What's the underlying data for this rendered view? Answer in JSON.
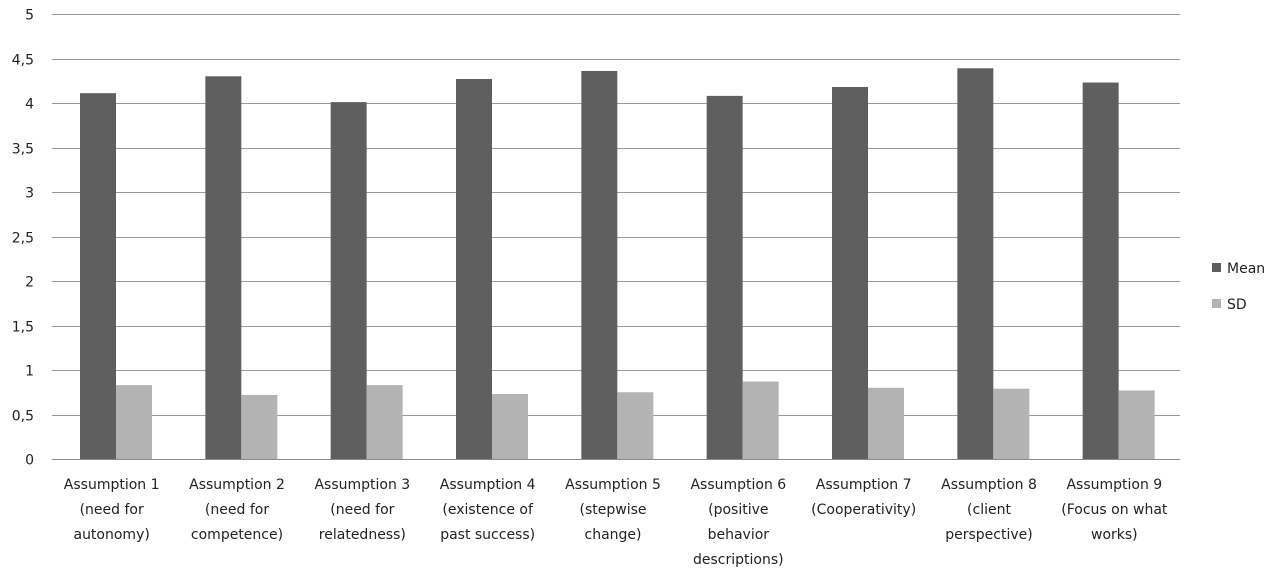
{
  "chart_data": {
    "type": "bar",
    "title": "",
    "xlabel": "",
    "ylabel": "",
    "ylim": [
      0,
      5
    ],
    "y_tick_step": 0.5,
    "y_tick_labels": [
      "0",
      "0,5",
      "1",
      "1,5",
      "2",
      "2,5",
      "3",
      "3,5",
      "4",
      "4,5",
      "5"
    ],
    "grid": true,
    "legend_position": "right",
    "categories": [
      [
        "Assumption 1",
        "(need for",
        "autonomy)"
      ],
      [
        "Assumption 2",
        "(need for",
        "competence)"
      ],
      [
        "Assumption 3",
        "(need for",
        "relatedness)"
      ],
      [
        "Assumption 4",
        "(existence of",
        "past success)"
      ],
      [
        "Assumption 5",
        "(stepwise",
        "change)"
      ],
      [
        "Assumption 6",
        "(positive",
        "behavior",
        "descriptions)"
      ],
      [
        "Assumption 7",
        "(Cooperativity)"
      ],
      [
        "Assumption 8",
        "(client",
        "perspective)"
      ],
      [
        "Assumption 9",
        "(Focus on what",
        "works)"
      ]
    ],
    "series": [
      {
        "name": "Mean",
        "color": "#5f5f5f",
        "values": [
          4.11,
          4.3,
          4.01,
          4.27,
          4.36,
          4.08,
          4.18,
          4.39,
          4.23
        ]
      },
      {
        "name": "SD",
        "color": "#b3b3b3",
        "values": [
          0.83,
          0.72,
          0.83,
          0.73,
          0.75,
          0.87,
          0.8,
          0.79,
          0.77
        ]
      }
    ]
  }
}
